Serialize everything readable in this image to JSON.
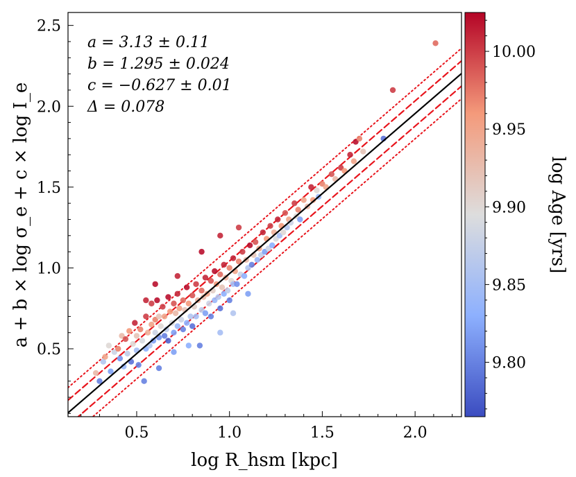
{
  "chart_data": {
    "type": "scatter",
    "title": "",
    "xlabel": "log R_hsm [kpc]",
    "ylabel": "a + b × log σ_e + c × log I_e",
    "colorbar_label": "log Age [yrs]",
    "xlim": [
      0.13,
      2.25
    ],
    "ylim": [
      0.08,
      2.58
    ],
    "clim": [
      9.765,
      10.025
    ],
    "x_ticks": [
      "0.5",
      "1.0",
      "1.5",
      "2.0"
    ],
    "x_tick_values": [
      0.5,
      1.0,
      1.5,
      2.0
    ],
    "y_ticks": [
      "0.5",
      "1.0",
      "1.5",
      "2.0",
      "2.5"
    ],
    "y_tick_values": [
      0.5,
      1.0,
      1.5,
      2.0,
      2.5
    ],
    "cbar_ticks": [
      "9.80",
      "9.85",
      "9.90",
      "9.95",
      "10.00"
    ],
    "cbar_tick_values": [
      9.8,
      9.85,
      9.9,
      9.95,
      10.0
    ],
    "annotations": [
      "a = 3.13 ± 0.11",
      "b = 1.295 ± 0.024",
      "c = −0.627 ± 0.01",
      "Δ = 0.078"
    ],
    "fit_line": {
      "slope": 0.99,
      "intercept": -0.025
    },
    "delta": 0.078,
    "colormap": "coolwarm",
    "colors": {
      "low": "#3b4cc0",
      "mid": "#dddddd",
      "high": "#b40426",
      "fit": "#000000",
      "bands": "#e8141c"
    },
    "points": [
      [
        0.28,
        0.35,
        9.93
      ],
      [
        0.3,
        0.3,
        9.8
      ],
      [
        0.32,
        0.42,
        9.86
      ],
      [
        0.33,
        0.45,
        9.95
      ],
      [
        0.35,
        0.52,
        9.9
      ],
      [
        0.36,
        0.36,
        9.82
      ],
      [
        0.38,
        0.48,
        9.88
      ],
      [
        0.4,
        0.5,
        9.97
      ],
      [
        0.41,
        0.44,
        9.81
      ],
      [
        0.42,
        0.58,
        9.93
      ],
      [
        0.43,
        0.39,
        9.84
      ],
      [
        0.44,
        0.56,
        9.99
      ],
      [
        0.45,
        0.47,
        9.87
      ],
      [
        0.46,
        0.61,
        9.96
      ],
      [
        0.47,
        0.42,
        9.79
      ],
      [
        0.48,
        0.53,
        9.9
      ],
      [
        0.49,
        0.66,
        10.01
      ],
      [
        0.5,
        0.49,
        9.85
      ],
      [
        0.5,
        0.58,
        9.92
      ],
      [
        0.51,
        0.4,
        9.8
      ],
      [
        0.52,
        0.62,
        9.97
      ],
      [
        0.53,
        0.55,
        9.89
      ],
      [
        0.54,
        0.3,
        9.8
      ],
      [
        0.55,
        0.7,
        10.0
      ],
      [
        0.55,
        0.5,
        9.83
      ],
      [
        0.56,
        0.6,
        9.94
      ],
      [
        0.57,
        0.52,
        9.86
      ],
      [
        0.58,
        0.78,
        10.0
      ],
      [
        0.58,
        0.65,
        9.95
      ],
      [
        0.59,
        0.55,
        9.82
      ],
      [
        0.6,
        0.68,
        9.97
      ],
      [
        0.6,
        0.6,
        9.88
      ],
      [
        0.61,
        0.8,
        10.02
      ],
      [
        0.62,
        0.57,
        9.81
      ],
      [
        0.62,
        0.7,
        9.92
      ],
      [
        0.63,
        0.64,
        9.9
      ],
      [
        0.64,
        0.76,
        10.0
      ],
      [
        0.65,
        0.58,
        9.8
      ],
      [
        0.65,
        0.7,
        9.95
      ],
      [
        0.66,
        0.62,
        9.87
      ],
      [
        0.67,
        0.82,
        10.02
      ],
      [
        0.67,
        0.55,
        9.78
      ],
      [
        0.68,
        0.73,
        9.96
      ],
      [
        0.69,
        0.66,
        9.89
      ],
      [
        0.7,
        0.78,
        9.99
      ],
      [
        0.7,
        0.6,
        9.82
      ],
      [
        0.71,
        0.72,
        9.93
      ],
      [
        0.72,
        0.84,
        10.01
      ],
      [
        0.72,
        0.64,
        9.84
      ],
      [
        0.73,
        0.75,
        9.95
      ],
      [
        0.74,
        0.68,
        9.88
      ],
      [
        0.75,
        0.8,
        9.98
      ],
      [
        0.75,
        0.62,
        9.8
      ],
      [
        0.76,
        0.74,
        9.92
      ],
      [
        0.77,
        0.88,
        10.02
      ],
      [
        0.77,
        0.66,
        9.83
      ],
      [
        0.78,
        0.78,
        9.96
      ],
      [
        0.79,
        0.7,
        9.86
      ],
      [
        0.8,
        0.83,
        9.99
      ],
      [
        0.8,
        0.64,
        9.79
      ],
      [
        0.81,
        0.76,
        9.91
      ],
      [
        0.82,
        0.9,
        10.0
      ],
      [
        0.82,
        0.7,
        9.85
      ],
      [
        0.83,
        0.8,
        9.94
      ],
      [
        0.84,
        0.52,
        9.8
      ],
      [
        0.85,
        0.86,
        9.98
      ],
      [
        0.85,
        0.74,
        9.87
      ],
      [
        0.86,
        0.82,
        9.93
      ],
      [
        0.87,
        0.94,
        10.01
      ],
      [
        0.87,
        0.72,
        9.82
      ],
      [
        0.88,
        0.84,
        9.95
      ],
      [
        0.89,
        0.78,
        9.88
      ],
      [
        0.9,
        0.92,
        9.99
      ],
      [
        0.9,
        0.7,
        9.8
      ],
      [
        0.91,
        0.86,
        9.91
      ],
      [
        0.92,
        0.98,
        10.02
      ],
      [
        0.92,
        0.8,
        9.84
      ],
      [
        0.93,
        0.9,
        9.96
      ],
      [
        0.94,
        0.82,
        9.86
      ],
      [
        0.95,
        0.96,
        9.98
      ],
      [
        0.95,
        0.75,
        9.79
      ],
      [
        0.96,
        0.88,
        9.92
      ],
      [
        0.97,
        1.02,
        10.01
      ],
      [
        0.97,
        0.84,
        9.83
      ],
      [
        0.98,
        0.94,
        9.94
      ],
      [
        0.99,
        0.86,
        9.87
      ],
      [
        1.0,
        1.0,
        9.97
      ],
      [
        1.0,
        0.8,
        9.8
      ],
      [
        1.01,
        0.92,
        9.9
      ],
      [
        1.02,
        1.06,
        10.01
      ],
      [
        1.02,
        0.9,
        9.85
      ],
      [
        1.03,
        0.98,
        9.95
      ],
      [
        1.04,
        0.9,
        9.81
      ],
      [
        1.05,
        1.04,
        9.97
      ],
      [
        1.06,
        0.96,
        9.88
      ],
      [
        1.07,
        1.1,
        10.0
      ],
      [
        1.08,
        0.95,
        9.83
      ],
      [
        1.09,
        1.05,
        9.93
      ],
      [
        1.1,
        1.0,
        9.86
      ],
      [
        1.11,
        1.14,
        10.02
      ],
      [
        1.12,
        1.02,
        9.8
      ],
      [
        1.13,
        1.08,
        9.92
      ],
      [
        1.14,
        1.16,
        9.99
      ],
      [
        1.15,
        1.05,
        9.84
      ],
      [
        1.16,
        1.12,
        9.95
      ],
      [
        1.17,
        1.08,
        9.87
      ],
      [
        1.18,
        1.22,
        10.01
      ],
      [
        1.19,
        1.1,
        9.82
      ],
      [
        1.2,
        1.18,
        9.96
      ],
      [
        1.21,
        1.12,
        9.88
      ],
      [
        1.22,
        1.26,
        10.0
      ],
      [
        1.23,
        1.14,
        9.83
      ],
      [
        1.24,
        1.22,
        9.94
      ],
      [
        1.25,
        1.18,
        9.89
      ],
      [
        1.26,
        1.3,
        10.01
      ],
      [
        1.27,
        1.2,
        9.85
      ],
      [
        1.28,
        1.26,
        9.96
      ],
      [
        1.29,
        1.22,
        9.9
      ],
      [
        1.3,
        1.34,
        9.99
      ],
      [
        1.31,
        1.25,
        9.86
      ],
      [
        1.32,
        1.3,
        9.95
      ],
      [
        1.33,
        1.28,
        9.88
      ],
      [
        1.35,
        1.4,
        10.0
      ],
      [
        1.36,
        1.32,
        9.9
      ],
      [
        1.37,
        1.36,
        9.97
      ],
      [
        1.38,
        1.3,
        9.82
      ],
      [
        1.4,
        1.42,
        9.95
      ],
      [
        1.42,
        1.38,
        9.93
      ],
      [
        1.44,
        1.5,
        10.01
      ],
      [
        1.45,
        1.42,
        9.96
      ],
      [
        1.47,
        1.48,
        9.9
      ],
      [
        1.48,
        1.44,
        9.84
      ],
      [
        1.5,
        1.52,
        9.97
      ],
      [
        1.52,
        1.5,
        9.95
      ],
      [
        1.55,
        1.58,
        9.99
      ],
      [
        1.57,
        1.55,
        9.93
      ],
      [
        1.6,
        1.62,
        10.0
      ],
      [
        1.62,
        1.6,
        9.96
      ],
      [
        1.65,
        1.7,
        10.01
      ],
      [
        1.67,
        1.66,
        9.95
      ],
      [
        1.68,
        1.78,
        10.02
      ],
      [
        1.7,
        1.8,
        9.97
      ],
      [
        1.72,
        1.72,
        9.92
      ],
      [
        1.83,
        1.8,
        9.79
      ],
      [
        1.88,
        2.1,
        10.0
      ],
      [
        2.11,
        2.39,
        9.98
      ],
      [
        0.62,
        0.38,
        9.8
      ],
      [
        0.7,
        0.48,
        9.82
      ],
      [
        0.78,
        0.52,
        9.83
      ],
      [
        0.95,
        0.6,
        9.85
      ],
      [
        1.02,
        0.72,
        9.86
      ],
      [
        1.1,
        0.84,
        9.82
      ],
      [
        0.55,
        0.8,
        10.01
      ],
      [
        0.6,
        0.9,
        10.02
      ],
      [
        0.72,
        0.95,
        10.01
      ],
      [
        0.85,
        1.1,
        10.02
      ],
      [
        0.95,
        1.2,
        10.01
      ],
      [
        1.05,
        1.25,
        10.0
      ]
    ]
  }
}
